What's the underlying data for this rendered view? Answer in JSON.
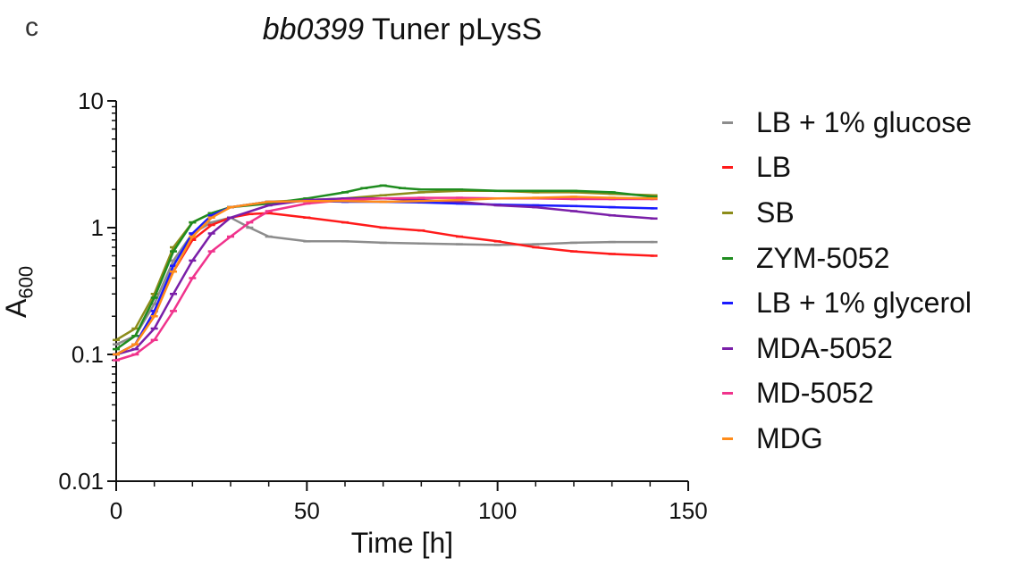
{
  "panel_label": "c",
  "chart_data": {
    "type": "line",
    "title": {
      "gene": "bb0399",
      "rest": "Tuner pLysS"
    },
    "xlabel": "Time [h]",
    "ylabel": {
      "main": "A",
      "sub": "600"
    },
    "xlim": [
      0,
      150
    ],
    "ylim": [
      0.01,
      10
    ],
    "yscale": "log",
    "x_ticks": [
      0,
      50,
      100,
      150
    ],
    "y_ticks": [
      {
        "value": 0.01,
        "label": "0.01"
      },
      {
        "value": 0.1,
        "label": "0.1"
      },
      {
        "value": 1,
        "label": "1"
      },
      {
        "value": 10,
        "label": "10"
      }
    ],
    "legend_placement": "right",
    "series": [
      {
        "name": "LB + 1% glucose",
        "color": "#8c8c8c",
        "x": [
          0,
          5,
          10,
          15,
          20,
          25,
          30,
          35,
          40,
          50,
          60,
          70,
          80,
          90,
          100,
          110,
          120,
          130,
          141
        ],
        "y": [
          0.12,
          0.14,
          0.25,
          0.55,
          0.9,
          1.1,
          1.2,
          1.0,
          0.85,
          0.78,
          0.78,
          0.76,
          0.75,
          0.74,
          0.73,
          0.74,
          0.76,
          0.77,
          0.77
        ]
      },
      {
        "name": "LB",
        "color": "#ff1a1a",
        "x": [
          0,
          5,
          10,
          15,
          20,
          25,
          30,
          35,
          40,
          50,
          60,
          70,
          80,
          90,
          100,
          110,
          120,
          130,
          141
        ],
        "y": [
          0.1,
          0.12,
          0.22,
          0.45,
          0.8,
          1.05,
          1.2,
          1.28,
          1.3,
          1.2,
          1.1,
          1.0,
          0.95,
          0.85,
          0.78,
          0.7,
          0.65,
          0.62,
          0.6
        ]
      },
      {
        "name": "SB",
        "color": "#8c8c1a",
        "x": [
          0,
          5,
          10,
          15,
          20,
          25,
          30,
          40,
          50,
          60,
          70,
          80,
          90,
          100,
          110,
          120,
          130,
          141
        ],
        "y": [
          0.13,
          0.16,
          0.3,
          0.7,
          1.1,
          1.3,
          1.45,
          1.6,
          1.65,
          1.7,
          1.8,
          1.9,
          1.95,
          1.95,
          1.9,
          1.9,
          1.85,
          1.8
        ]
      },
      {
        "name": "ZYM-5052",
        "color": "#1f8c1f",
        "x": [
          0,
          5,
          10,
          15,
          20,
          25,
          30,
          40,
          50,
          60,
          65,
          70,
          75,
          80,
          90,
          100,
          110,
          120,
          130,
          141
        ],
        "y": [
          0.11,
          0.14,
          0.28,
          0.65,
          1.1,
          1.3,
          1.45,
          1.55,
          1.7,
          1.9,
          2.05,
          2.15,
          2.05,
          2.0,
          2.0,
          1.95,
          1.95,
          1.95,
          1.9,
          1.75
        ]
      },
      {
        "name": "LB + 1% glycerol",
        "color": "#1a1aff",
        "x": [
          0,
          5,
          10,
          15,
          20,
          25,
          30,
          40,
          50,
          60,
          70,
          80,
          90,
          100,
          110,
          120,
          130,
          141
        ],
        "y": [
          0.1,
          0.12,
          0.22,
          0.5,
          0.9,
          1.25,
          1.45,
          1.6,
          1.62,
          1.6,
          1.6,
          1.58,
          1.55,
          1.52,
          1.5,
          1.48,
          1.45,
          1.42
        ]
      },
      {
        "name": "MDA-5052",
        "color": "#7a1fa8",
        "x": [
          0,
          5,
          10,
          15,
          20,
          25,
          30,
          40,
          50,
          60,
          70,
          80,
          90,
          100,
          110,
          120,
          130,
          141
        ],
        "y": [
          0.1,
          0.11,
          0.16,
          0.3,
          0.55,
          0.9,
          1.2,
          1.5,
          1.65,
          1.7,
          1.7,
          1.65,
          1.6,
          1.5,
          1.45,
          1.35,
          1.25,
          1.18
        ]
      },
      {
        "name": "MD-5052",
        "color": "#f0338c",
        "x": [
          0,
          5,
          10,
          15,
          20,
          25,
          30,
          35,
          40,
          50,
          60,
          70,
          80,
          90,
          100,
          110,
          120,
          130,
          141
        ],
        "y": [
          0.09,
          0.1,
          0.13,
          0.22,
          0.4,
          0.65,
          0.85,
          1.1,
          1.35,
          1.55,
          1.65,
          1.7,
          1.72,
          1.72,
          1.7,
          1.7,
          1.68,
          1.68,
          1.68
        ]
      },
      {
        "name": "MDG",
        "color": "#ff8c1a",
        "x": [
          0,
          5,
          10,
          15,
          20,
          25,
          30,
          40,
          50,
          60,
          70,
          80,
          90,
          100,
          110,
          120,
          130,
          141
        ],
        "y": [
          0.1,
          0.12,
          0.2,
          0.45,
          0.85,
          1.2,
          1.45,
          1.6,
          1.62,
          1.62,
          1.6,
          1.62,
          1.65,
          1.7,
          1.72,
          1.75,
          1.72,
          1.7
        ]
      }
    ]
  }
}
